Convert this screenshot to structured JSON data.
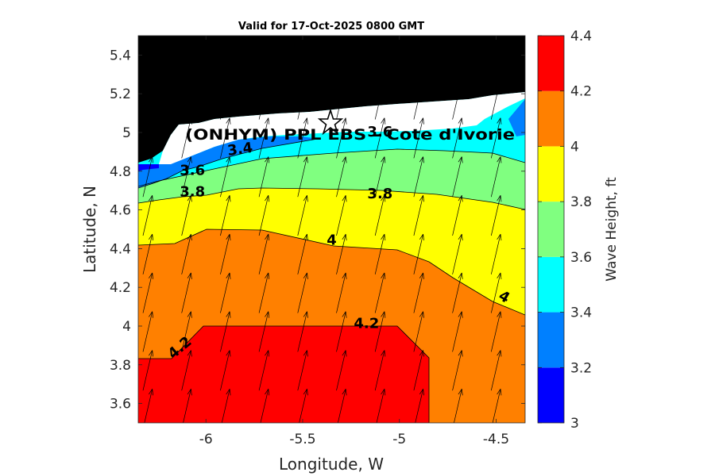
{
  "chart_data": {
    "type": "heatmap",
    "subtype": "filled-contour",
    "title": "Valid for 17-Oct-2025 0800 GMT",
    "xlabel": "Longitude, W",
    "ylabel": "Latitude, N",
    "xlim": [
      -6.35,
      -4.35
    ],
    "ylim": [
      3.5,
      5.5
    ],
    "x_ticks": [
      -6,
      -5.5,
      -5,
      -4.5
    ],
    "x_tick_labels": [
      "-6",
      "-5.5",
      "-5",
      "-4.5"
    ],
    "y_ticks": [
      3.6,
      3.8,
      4,
      4.2,
      4.4,
      4.6,
      4.8,
      5,
      5.2,
      5.4
    ],
    "y_tick_labels": [
      "3.6",
      "3.8",
      "4",
      "4.2",
      "4.4",
      "4.6",
      "4.8",
      "5",
      "5.2",
      "5.4"
    ],
    "colorbar": {
      "label": "Wave Height, ft",
      "levels": [
        3,
        3.2,
        3.4,
        3.6,
        3.8,
        4,
        4.2,
        4.4
      ],
      "tick_labels": [
        "3",
        "3.2",
        "3.4",
        "3.6",
        "3.8",
        "4",
        "4.2",
        "4.4"
      ],
      "colors": [
        "#0000ff",
        "#0080ff",
        "#00ffff",
        "#80ff80",
        "#ffff00",
        "#ff8000",
        "#ff0000"
      ]
    },
    "contour_labels": [
      {
        "text": "3.4",
        "lon": -5.82,
        "lat": 4.89,
        "rotate": -8
      },
      {
        "text": "3.6",
        "lon": -5.1,
        "lat": 4.98,
        "rotate": 0
      },
      {
        "text": "3.6",
        "lon": -6.07,
        "lat": 4.78,
        "rotate": 0
      },
      {
        "text": "3.8",
        "lon": -6.07,
        "lat": 4.67,
        "rotate": 0
      },
      {
        "text": "3.8",
        "lon": -5.1,
        "lat": 4.66,
        "rotate": 0
      },
      {
        "text": "4",
        "lon": -5.35,
        "lat": 4.42,
        "rotate": 0
      },
      {
        "text": "4",
        "lon": -4.47,
        "lat": 4.13,
        "rotate": 30
      },
      {
        "text": "4.2",
        "lon": -5.17,
        "lat": 3.99,
        "rotate": 0
      },
      {
        "text": "4.2",
        "lon": -6.12,
        "lat": 3.87,
        "rotate": -40
      }
    ],
    "station": {
      "name": "(ONHYM) PPL EBS - Cote d'Ivorie",
      "lon": -5.35,
      "lat": 5.05
    },
    "land_color": "#000000",
    "vectors": "wave direction arrows pointing north-northeast (approx. 10-15 deg)"
  }
}
